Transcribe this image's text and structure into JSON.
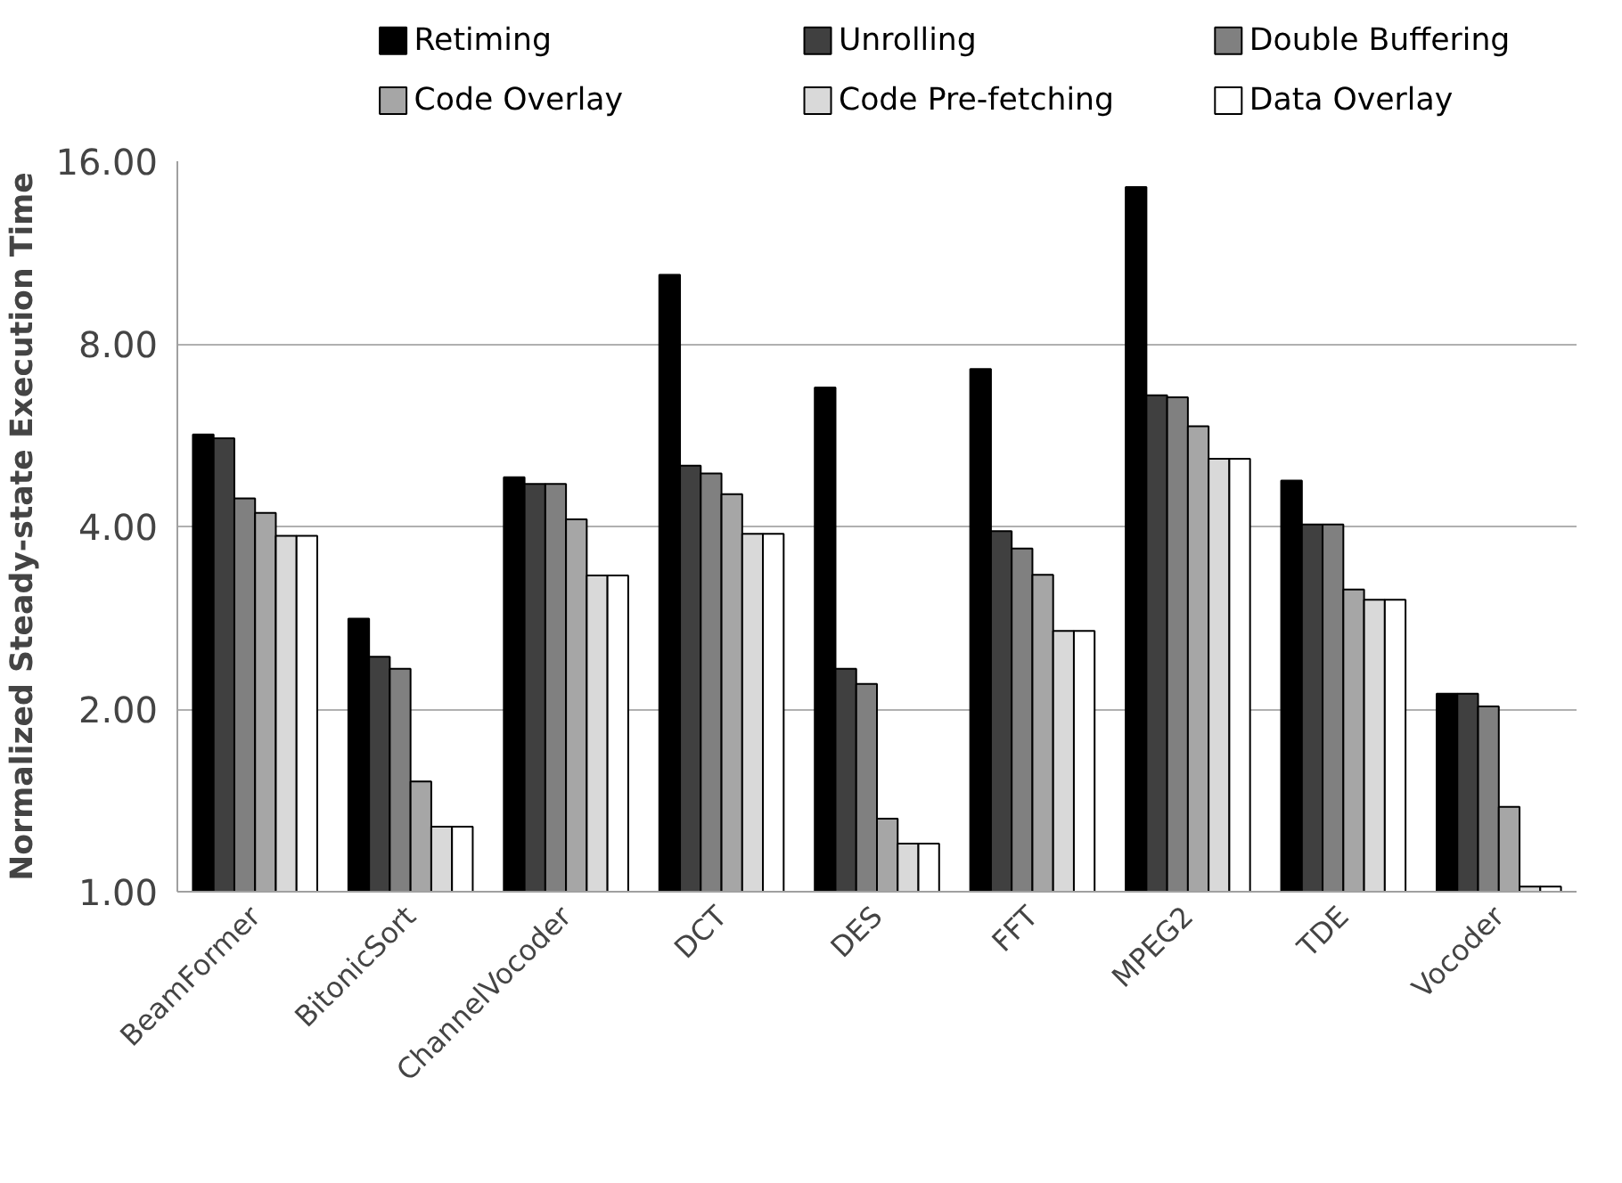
{
  "chart_data": {
    "type": "bar",
    "ylabel": "Normalized Steady-state Execution Time",
    "categories": [
      "BeamFormer",
      "BitonicSort",
      "ChannelVocoder",
      "DCT",
      "DES",
      "FFT",
      "MPEG2",
      "TDE",
      "Vocoder"
    ],
    "series": [
      {
        "name": "Retiming",
        "color": "#000000",
        "values": [
          5.67,
          2.82,
          4.82,
          10.4,
          6.78,
          7.27,
          14.5,
          4.76,
          2.12
        ]
      },
      {
        "name": "Unrolling",
        "color": "#404040",
        "values": [
          5.59,
          2.44,
          4.7,
          5.04,
          2.33,
          3.93,
          6.58,
          4.03,
          2.12
        ]
      },
      {
        "name": "Double Buffering",
        "color": "#808080",
        "values": [
          4.45,
          2.33,
          4.7,
          4.89,
          2.2,
          3.68,
          6.53,
          4.03,
          2.02
        ]
      },
      {
        "name": "Code Overlay",
        "color": "#a6a6a6",
        "values": [
          4.21,
          1.52,
          4.11,
          4.52,
          1.32,
          3.33,
          5.85,
          3.15,
          1.38
        ]
      },
      {
        "name": "Code Pre-fetching",
        "color": "#d9d9d9",
        "values": [
          3.86,
          1.28,
          3.32,
          3.89,
          1.2,
          2.69,
          5.17,
          3.03,
          1.02
        ]
      },
      {
        "name": "Data Overlay",
        "color": "#ffffff",
        "values": [
          3.86,
          1.28,
          3.32,
          3.89,
          1.2,
          2.69,
          5.17,
          3.03,
          1.02
        ]
      }
    ],
    "log": "y",
    "ylim": [
      1,
      16
    ],
    "yticks": [
      {
        "value": 1,
        "label": "1.00"
      },
      {
        "value": 2,
        "label": "2.00"
      },
      {
        "value": 4,
        "label": "4.00"
      },
      {
        "value": 8,
        "label": "8.00"
      },
      {
        "value": 16,
        "label": "16.00"
      }
    ],
    "grid": "y",
    "legend": "top"
  }
}
